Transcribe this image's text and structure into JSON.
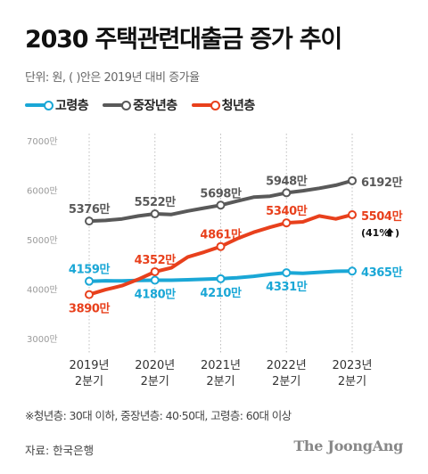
{
  "title": "2030 주택관련대출금 증가 추이",
  "unit_note": "단위: 원, ( )안은 2019년 대비 증가율",
  "footnote": "※청년층: 30대 이하, 중장년층: 40·50대, 고령층: 60대 이상",
  "source": "자료: 한국은행",
  "brand": "The JoongAng",
  "chart_data": {
    "type": "line",
    "title": "2030 주택관련대출금 증가 추이",
    "unit": "원",
    "x": [
      "2019Q2",
      "2019Q3",
      "2019Q4",
      "2020Q1",
      "2020Q2",
      "2020Q3",
      "2020Q4",
      "2021Q1",
      "2021Q2",
      "2021Q3",
      "2021Q4",
      "2022Q1",
      "2022Q2",
      "2022Q3",
      "2022Q4",
      "2023Q1",
      "2023Q2"
    ],
    "x_tick_labels": [
      {
        "at": "2019Q2",
        "line1": "2019년",
        "line2": "2분기"
      },
      {
        "at": "2020Q2",
        "line1": "2020년",
        "line2": "2분기"
      },
      {
        "at": "2021Q2",
        "line1": "2021년",
        "line2": "2분기"
      },
      {
        "at": "2022Q2",
        "line1": "2022년",
        "line2": "2분기"
      },
      {
        "at": "2023Q2",
        "line1": "2023년",
        "line2": "2분기"
      }
    ],
    "y_ticks": [
      "3000만",
      "4000만",
      "5000만",
      "6000만",
      "7000만"
    ],
    "ylim": [
      3000,
      7000
    ],
    "y_unit": "만원",
    "grid": "vertical at labeled quarters",
    "legend_position": "top-left",
    "series": [
      {
        "name": "고령층",
        "color": "#1aa7d6",
        "values": [
          4159,
          4170,
          4165,
          4175,
          4180,
          4180,
          4190,
          4200,
          4210,
          4230,
          4260,
          4300,
          4331,
          4320,
          4340,
          4360,
          4365
        ],
        "labels": [
          {
            "at": "2019Q2",
            "text": "4159만",
            "pos": "above"
          },
          {
            "at": "2020Q2",
            "text": "4180만",
            "pos": "below"
          },
          {
            "at": "2021Q2",
            "text": "4210만",
            "pos": "below"
          },
          {
            "at": "2022Q2",
            "text": "4331만",
            "pos": "below"
          },
          {
            "at": "2023Q2",
            "text": "4365만",
            "pos": "right"
          }
        ]
      },
      {
        "name": "중장년층",
        "color": "#595959",
        "values": [
          5376,
          5390,
          5420,
          5480,
          5522,
          5510,
          5580,
          5640,
          5698,
          5780,
          5860,
          5880,
          5948,
          5990,
          6040,
          6100,
          6192
        ],
        "labels": [
          {
            "at": "2019Q2",
            "text": "5376만",
            "pos": "above"
          },
          {
            "at": "2020Q2",
            "text": "5522만",
            "pos": "above"
          },
          {
            "at": "2021Q2",
            "text": "5698만",
            "pos": "above"
          },
          {
            "at": "2022Q2",
            "text": "5948만",
            "pos": "above"
          },
          {
            "at": "2023Q2",
            "text": "6192만",
            "pos": "right"
          }
        ]
      },
      {
        "name": "청년층",
        "color": "#e8401c",
        "values": [
          3890,
          3990,
          4070,
          4200,
          4352,
          4430,
          4650,
          4750,
          4861,
          5020,
          5150,
          5250,
          5340,
          5360,
          5480,
          5420,
          5504
        ],
        "labels": [
          {
            "at": "2019Q2",
            "text": "3890만",
            "pos": "below"
          },
          {
            "at": "2020Q2",
            "text": "4352만",
            "pos": "above"
          },
          {
            "at": "2021Q2",
            "text": "4861만",
            "pos": "above"
          },
          {
            "at": "2022Q2",
            "text": "5340만",
            "pos": "above"
          },
          {
            "at": "2023Q2",
            "text": "5504만",
            "pos": "right"
          }
        ],
        "annotation": {
          "text": "(41%",
          "arrow": "up-arrow-icon",
          "close": ")"
        }
      }
    ]
  }
}
